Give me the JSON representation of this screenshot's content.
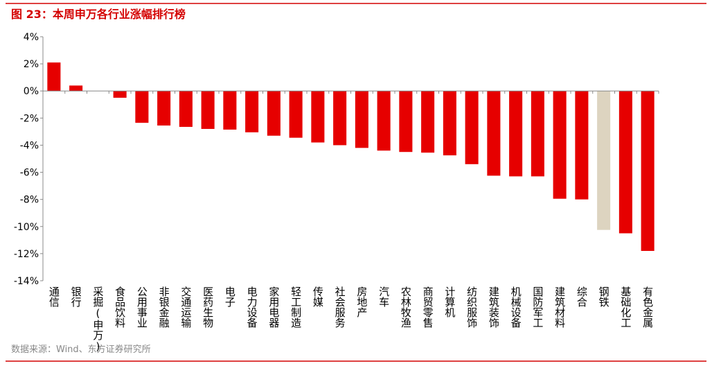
{
  "chart_data": {
    "type": "bar",
    "title": "图 23：本周申万各行业涨幅排行榜",
    "source": "数据来源：Wind、东方证券研究所",
    "categories": [
      "通信",
      "银行",
      "采掘(申万)",
      "食品饮料",
      "公用事业",
      "非银金融",
      "交通运输",
      "医药生物",
      "电子",
      "电力设备",
      "家用电器",
      "轻工制造",
      "传媒",
      "社会服务",
      "房地产",
      "汽车",
      "农林牧渔",
      "商贸零售",
      "计算机",
      "纺织服饰",
      "建筑装饰",
      "机械设备",
      "国防军工",
      "建筑材料",
      "综合",
      "钢铁",
      "基础化工",
      "有色金属"
    ],
    "values": [
      2.1,
      0.4,
      0,
      -0.5,
      -2.35,
      -2.55,
      -2.65,
      -2.8,
      -2.85,
      -3.05,
      -3.3,
      -3.45,
      -3.8,
      -4.0,
      -4.2,
      -4.4,
      -4.5,
      -4.55,
      -4.75,
      -5.4,
      -6.25,
      -6.3,
      -6.3,
      -7.95,
      -8.0,
      -10.25,
      -10.5,
      -11.8
    ],
    "colors": [
      "#e60000",
      "#e60000",
      "#e60000",
      "#e60000",
      "#e60000",
      "#e60000",
      "#e60000",
      "#e60000",
      "#e60000",
      "#e60000",
      "#e60000",
      "#e60000",
      "#e60000",
      "#e60000",
      "#e60000",
      "#e60000",
      "#e60000",
      "#e60000",
      "#e60000",
      "#e60000",
      "#e60000",
      "#e60000",
      "#e60000",
      "#e60000",
      "#e60000",
      "#ddd4c0",
      "#e60000",
      "#e60000"
    ],
    "ylim": [
      -14,
      4
    ],
    "yticks": [
      {
        "value": -14,
        "label": "-14%"
      },
      {
        "value": -12,
        "label": "-12%"
      },
      {
        "value": -10,
        "label": "-10%"
      },
      {
        "value": -8,
        "label": "-8%"
      },
      {
        "value": -6,
        "label": "-6%"
      },
      {
        "value": -4,
        "label": "-4%"
      },
      {
        "value": -2,
        "label": "-2%"
      },
      {
        "value": 0,
        "label": "0%"
      },
      {
        "value": 2,
        "label": "2%"
      },
      {
        "value": 4,
        "label": "4%"
      }
    ]
  }
}
